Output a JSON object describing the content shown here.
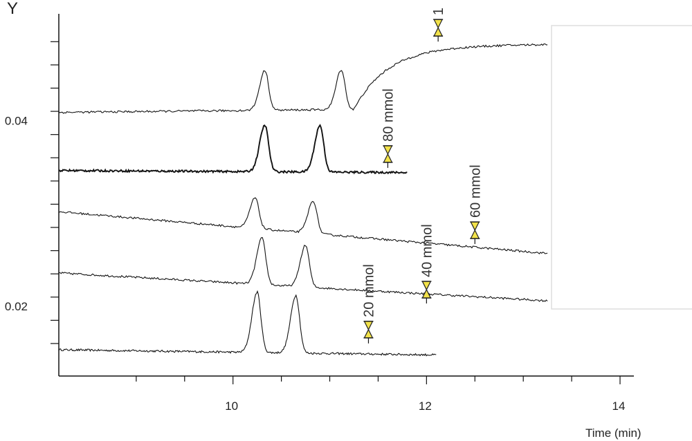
{
  "chart_data": {
    "type": "line",
    "ylabel": "Y",
    "xlabel": "Time (min)",
    "xlim": [
      8.2,
      14.1
    ],
    "ylim": [
      0.0125,
      0.0515
    ],
    "x_ticks": [
      10,
      12,
      14
    ],
    "y_ticks": [
      0.02,
      0.04
    ],
    "y_tick_labels": [
      "0.02",
      "0.04"
    ],
    "x_tick_labels": [
      "10",
      "12",
      "14"
    ],
    "grid": false,
    "colors": {
      "trace": "#111111",
      "marker": "#f2e24a",
      "legend_border": "#dddddd"
    },
    "marker_icon": "hourglass-icon",
    "series": [
      {
        "name": "20 mmol",
        "baseline_start": 0.01533,
        "baseline_end": 0.01477,
        "x_start": 8.2,
        "x_end": 12.1,
        "peaks": [
          {
            "x": 10.25,
            "h": 0.0065
          },
          {
            "x": 10.65,
            "h": 0.0062
          }
        ],
        "marker": {
          "x": 11.4,
          "y": 0.0175,
          "label": "20 mmol"
        }
      },
      {
        "name": "40 mmol",
        "baseline_start": 0.0236,
        "baseline_end": 0.0206,
        "x_start": 8.2,
        "x_end": 13.25,
        "peaks": [
          {
            "x": 10.3,
            "h": 0.005
          },
          {
            "x": 10.75,
            "h": 0.0045
          }
        ],
        "marker": {
          "x": 12.0,
          "y": 0.0218,
          "label": "40 mmol"
        }
      },
      {
        "name": "60 mmol",
        "baseline_start": 0.0302,
        "baseline_end": 0.0257,
        "x_start": 8.2,
        "x_end": 13.25,
        "peaks": [
          {
            "x": 10.23,
            "h": 0.0033
          },
          {
            "x": 10.83,
            "h": 0.0035
          }
        ],
        "marker": {
          "x": 12.5,
          "y": 0.0282,
          "label": "60 mmol"
        }
      },
      {
        "name": "80 mmol",
        "baseline_start": 0.03463,
        "baseline_end": 0.03441,
        "x_start": 8.2,
        "x_end": 11.8,
        "peaks": [
          {
            "x": 10.33,
            "h": 0.005
          },
          {
            "x": 10.9,
            "h": 0.005
          }
        ],
        "marker": {
          "x": 11.6,
          "y": 0.0364,
          "label": "80 mmol"
        }
      },
      {
        "name": "1",
        "baseline_start": 0.04089,
        "baseline_end": 0.04142,
        "x_start": 8.2,
        "x_end": 13.25,
        "peaks": [
          {
            "x": 10.33,
            "h": 0.0043
          },
          {
            "x": 11.12,
            "h": 0.0043
          }
        ],
        "plateau": {
          "x": 11.25,
          "h": 0.0068
        },
        "marker": {
          "x": 12.12,
          "y": 0.05,
          "label": "1"
        }
      }
    ]
  }
}
